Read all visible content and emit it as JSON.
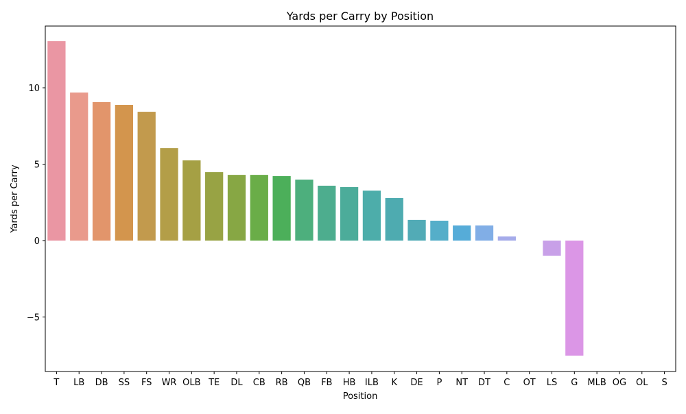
{
  "chart_data": {
    "type": "bar",
    "title": "Yards per Carry by Position",
    "xlabel": "Position",
    "ylabel": "Yards per Carry",
    "categories": [
      "T",
      "LB",
      "DB",
      "SS",
      "FS",
      "WR",
      "OLB",
      "TE",
      "DL",
      "CB",
      "RB",
      "QB",
      "FB",
      "HB",
      "ILB",
      "K",
      "DE",
      "P",
      "NT",
      "DT",
      "C",
      "OT",
      "LS",
      "G",
      "MLB",
      "OG",
      "OL",
      "S"
    ],
    "values": [
      13.05,
      9.69,
      9.06,
      8.88,
      8.43,
      6.05,
      5.25,
      4.48,
      4.3,
      4.3,
      4.22,
      3.99,
      3.59,
      3.5,
      3.27,
      2.78,
      1.35,
      1.3,
      0.99,
      0.99,
      0.27,
      0,
      -0.99,
      -7.53,
      0,
      0,
      0,
      0
    ],
    "colors": [
      "#ea96a3",
      "#e99a8c",
      "#e2956b",
      "#d3954d",
      "#c29a4d",
      "#b39e48",
      "#a5a044",
      "#98a344",
      "#87a744",
      "#6aad48",
      "#4caf5a",
      "#4daf7d",
      "#4dad8e",
      "#4cac9a",
      "#4dadaa",
      "#4eabb0",
      "#52abb6",
      "#55aec9",
      "#56acd8",
      "#81aee6",
      "#a5abea",
      "#b8a6ea",
      "#c8a0e8",
      "#db96e6",
      "#e096dc",
      "#e597cd",
      "#e896bf",
      "#ea96b0"
    ],
    "yticks": [
      -5,
      0,
      5,
      10
    ],
    "ytick_labels": [
      "−5",
      "0",
      "5",
      "10"
    ],
    "ylim": [
      -8.57,
      14.04
    ],
    "grid": false
  }
}
